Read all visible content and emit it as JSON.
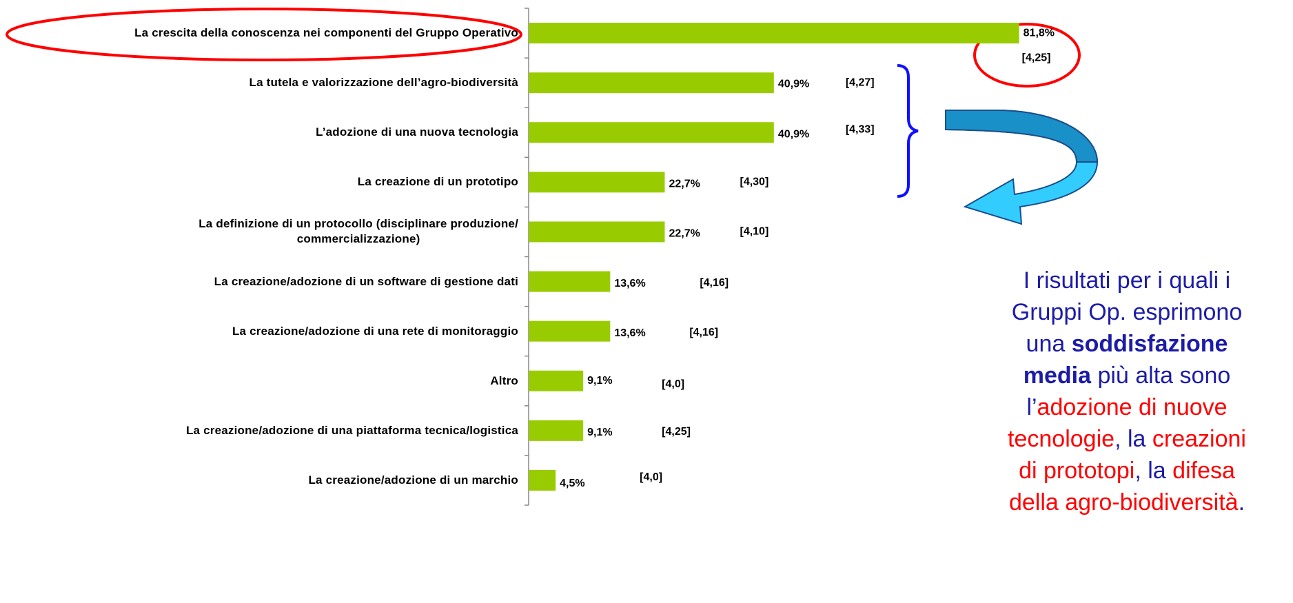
{
  "chart_data": {
    "type": "bar",
    "orientation": "horizontal",
    "categories": [
      "La crescita della conoscenza nei componenti del Gruppo Operativo",
      "La tutela e valorizzazione dell’agro-biodiversità",
      "L’adozione di una nuova tecnologia",
      "La creazione di un prototipo",
      "La definizione di un protocollo (disciplinare produzione/\ncommercializzazione)",
      "La creazione/adozione di un software di gestione dati",
      "La creazione/adozione di una rete di monitoraggio",
      "Altro",
      "La creazione/adozione di una piattaforma tecnica/logistica",
      "La creazione/adozione di un marchio"
    ],
    "values": [
      81.8,
      40.9,
      40.9,
      22.7,
      22.7,
      13.6,
      13.6,
      9.1,
      9.1,
      4.5
    ],
    "value_labels": [
      "81,8%",
      "40,9%",
      "40,9%",
      "22,7%",
      "22,7%",
      "13,6%",
      "13,6%",
      "9,1%",
      "9,1%",
      "4,5%"
    ],
    "scores": [
      "[4,25]",
      "[4,27]",
      "[4,33]",
      "[4,30]",
      "[4,10]",
      "[4,16]",
      "[4,16]",
      "[4,0]",
      "[4,25]",
      "[4,0]"
    ],
    "color": "#99cc00",
    "xlim": [
      0,
      100
    ],
    "note": [
      {
        "text": "I risultati per i quali i Gruppi Op. esprimono una ",
        "color": "#1c1ca8"
      },
      {
        "text": "soddisfazione media",
        "color": "#1c1ca8",
        "bold": true
      },
      {
        "text": " più alta sono l’",
        "color": "#1c1ca8"
      },
      {
        "text": "adozione di nuove tecnologie",
        "color": "#ff0000"
      },
      {
        "text": ", la ",
        "color": "#1c1ca8"
      },
      {
        "text": "creazioni di prototopi",
        "color": "#ff0000"
      },
      {
        "text": ", la ",
        "color": "#1c1ca8"
      },
      {
        "text": "difesa della agro-biodiversità",
        "color": "#ff0000"
      },
      {
        "text": ".",
        "color": "#1c1ca8"
      }
    ]
  }
}
